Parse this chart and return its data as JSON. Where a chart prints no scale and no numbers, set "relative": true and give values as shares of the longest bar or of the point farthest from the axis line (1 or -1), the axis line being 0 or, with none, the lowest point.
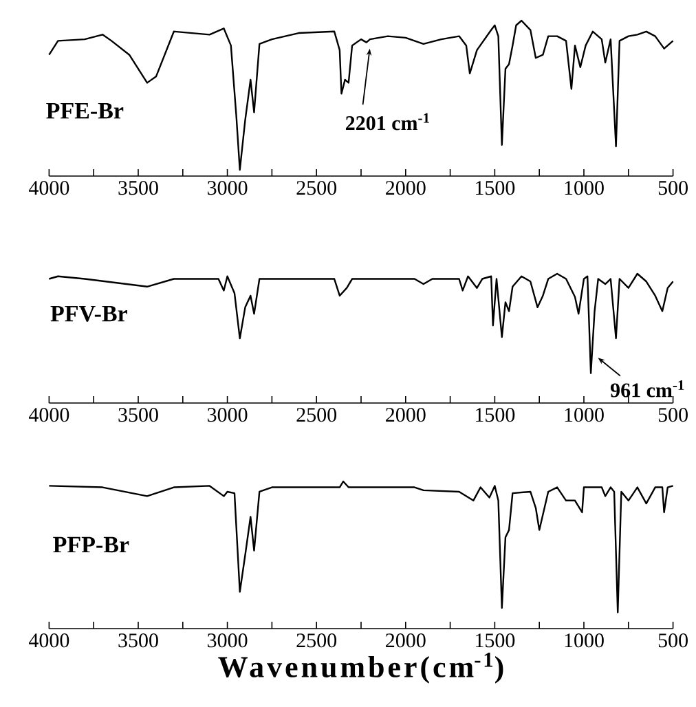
{
  "chart_data": [
    {
      "type": "line",
      "relative": true,
      "xlim": [
        4000,
        500
      ],
      "xticks": [
        4000,
        {
          "value": 3750,
          "label": null
        },
        3500,
        {
          "value": 3250,
          "label": null
        },
        3000,
        {
          "value": 2750,
          "label": null
        },
        2500,
        {
          "value": 2250,
          "label": null
        },
        2000,
        {
          "value": 1750,
          "label": null
        },
        1500,
        {
          "value": 1250,
          "label": null
        },
        1000,
        {
          "value": 750,
          "label": null
        },
        500
      ],
      "series": [
        {
          "name": "PFE-Br",
          "color": "#000000",
          "x": [
            4000,
            3950,
            3800,
            3700,
            3650,
            3550,
            3450,
            3400,
            3300,
            3100,
            3020,
            2980,
            2950,
            2930,
            2900,
            2870,
            2850,
            2820,
            2750,
            2600,
            2400,
            2370,
            2360,
            2340,
            2320,
            2300,
            2250,
            2220,
            2200,
            2100,
            2000,
            1900,
            1800,
            1700,
            1660,
            1640,
            1600,
            1520,
            1500,
            1480,
            1460,
            1440,
            1420,
            1400,
            1380,
            1350,
            1300,
            1270,
            1230,
            1200,
            1150,
            1100,
            1070,
            1050,
            1020,
            990,
            950,
            900,
            880,
            850,
            820,
            800,
            750,
            700,
            650,
            600,
            550,
            500
          ],
          "values": [
            0.78,
            0.87,
            0.88,
            0.91,
            0.87,
            0.78,
            0.6,
            0.64,
            0.93,
            0.91,
            0.95,
            0.84,
            0.39,
            0.04,
            0.36,
            0.62,
            0.41,
            0.85,
            0.88,
            0.92,
            0.93,
            0.81,
            0.53,
            0.62,
            0.6,
            0.84,
            0.88,
            0.86,
            0.88,
            0.9,
            0.89,
            0.85,
            0.88,
            0.9,
            0.84,
            0.66,
            0.81,
            0.94,
            0.97,
            0.9,
            0.2,
            0.69,
            0.72,
            0.84,
            0.97,
            1.0,
            0.94,
            0.76,
            0.78,
            0.9,
            0.9,
            0.87,
            0.56,
            0.84,
            0.7,
            0.84,
            0.93,
            0.88,
            0.73,
            0.88,
            0.19,
            0.87,
            0.9,
            0.91,
            0.93,
            0.9,
            0.82,
            0.87
          ]
        }
      ],
      "annotations": [
        {
          "text": "2201 cm$^{-1}$",
          "x": 2201,
          "y": 0.84
        }
      ]
    },
    {
      "type": "line",
      "relative": true,
      "xlim": [
        4000,
        500
      ],
      "xticks": [
        4000,
        {
          "value": 3750,
          "label": null
        },
        3500,
        {
          "value": 3250,
          "label": null
        },
        3000,
        {
          "value": 2750,
          "label": null
        },
        2500,
        {
          "value": 2250,
          "label": null
        },
        2000,
        {
          "value": 1750,
          "label": null
        },
        1500,
        {
          "value": 1250,
          "label": null
        },
        1000,
        {
          "value": 750,
          "label": null
        },
        500
      ],
      "series": [
        {
          "name": "PFV-Br",
          "color": "#000000",
          "x": [
            4000,
            3950,
            3800,
            3450,
            3300,
            3050,
            3020,
            3000,
            2960,
            2930,
            2900,
            2870,
            2850,
            2820,
            2400,
            2370,
            2330,
            2300,
            1950,
            1900,
            1850,
            1700,
            1680,
            1650,
            1600,
            1570,
            1520,
            1510,
            1490,
            1460,
            1440,
            1420,
            1400,
            1350,
            1300,
            1260,
            1230,
            1200,
            1150,
            1100,
            1050,
            1030,
            1000,
            980,
            961,
            940,
            920,
            880,
            850,
            820,
            800,
            750,
            700,
            650,
            600,
            560,
            530,
            500
          ],
          "values": [
            0.96,
            0.98,
            0.96,
            0.9,
            0.96,
            0.96,
            0.87,
            0.98,
            0.85,
            0.5,
            0.74,
            0.83,
            0.69,
            0.96,
            0.96,
            0.83,
            0.89,
            0.96,
            0.96,
            0.92,
            0.96,
            0.96,
            0.87,
            0.98,
            0.89,
            0.96,
            0.98,
            0.6,
            0.96,
            0.51,
            0.78,
            0.71,
            0.9,
            0.98,
            0.94,
            0.74,
            0.83,
            0.96,
            1.0,
            0.96,
            0.82,
            0.69,
            0.96,
            0.98,
            0.23,
            0.71,
            0.96,
            0.92,
            0.96,
            0.5,
            0.96,
            0.89,
            1.0,
            0.94,
            0.83,
            0.71,
            0.89,
            0.94
          ]
        }
      ],
      "annotations": [
        {
          "text": "961 cm$^{-1}$",
          "x": 961,
          "y": 0.33
        }
      ]
    },
    {
      "type": "line",
      "relative": true,
      "xlim": [
        4000,
        500
      ],
      "xticks": [
        4000,
        {
          "value": 3750,
          "label": null
        },
        3500,
        {
          "value": 3250,
          "label": null
        },
        3000,
        {
          "value": 2750,
          "label": null
        },
        2500,
        {
          "value": 2250,
          "label": null
        },
        2000,
        {
          "value": 1750,
          "label": null
        },
        1500,
        {
          "value": 1250,
          "label": null
        },
        1000,
        {
          "value": 750,
          "label": null
        },
        500
      ],
      "xlabel": "Wavenumber(cm$^{-1}$)",
      "series": [
        {
          "name": "PFP-Br",
          "color": "#000000",
          "x": [
            4000,
            3700,
            3450,
            3300,
            3100,
            3020,
            3000,
            2960,
            2930,
            2900,
            2870,
            2850,
            2820,
            2750,
            2370,
            2350,
            2320,
            1950,
            1900,
            1700,
            1620,
            1580,
            1530,
            1500,
            1480,
            1460,
            1440,
            1420,
            1400,
            1300,
            1270,
            1250,
            1200,
            1150,
            1100,
            1050,
            1010,
            1000,
            900,
            880,
            850,
            830,
            810,
            790,
            750,
            700,
            650,
            600,
            560,
            550,
            530,
            500
          ],
          "values": [
            0.97,
            0.96,
            0.9,
            0.96,
            0.97,
            0.9,
            0.93,
            0.92,
            0.25,
            0.5,
            0.76,
            0.53,
            0.93,
            0.96,
            0.96,
            1.0,
            0.96,
            0.96,
            0.94,
            0.93,
            0.87,
            0.96,
            0.89,
            0.97,
            0.87,
            0.14,
            0.62,
            0.67,
            0.92,
            0.93,
            0.82,
            0.67,
            0.93,
            0.96,
            0.87,
            0.87,
            0.79,
            0.96,
            0.96,
            0.9,
            0.96,
            0.93,
            0.11,
            0.93,
            0.87,
            0.96,
            0.85,
            0.96,
            0.96,
            0.79,
            0.96,
            0.97
          ]
        }
      ]
    }
  ]
}
